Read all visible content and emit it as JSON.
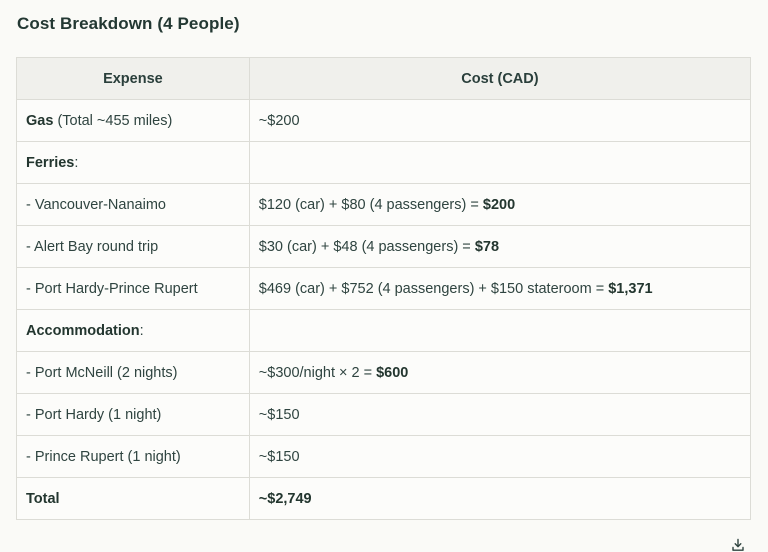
{
  "heading": "Cost Breakdown (4 People)",
  "table": {
    "headers": [
      "Expense",
      "Cost (CAD)"
    ],
    "rows": [
      {
        "expense_bold": "Gas",
        "expense_rest": " (Total ~455 miles)",
        "cost_plain": "~$200",
        "cost_bold": ""
      },
      {
        "expense_bold": "Ferries",
        "expense_rest": ":",
        "cost_plain": "",
        "cost_bold": ""
      },
      {
        "expense_bold": "",
        "expense_rest": "- Vancouver-Nanaimo",
        "cost_plain": "$120 (car) + $80 (4 passengers) = ",
        "cost_bold": "$200"
      },
      {
        "expense_bold": "",
        "expense_rest": "- Alert Bay round trip",
        "cost_plain": "$30 (car) + $48 (4 passengers) = ",
        "cost_bold": "$78"
      },
      {
        "expense_bold": "",
        "expense_rest": "- Port Hardy-Prince Rupert",
        "cost_plain": "$469 (car) + $752 (4 passengers) + $150 stateroom = ",
        "cost_bold": "$1,371"
      },
      {
        "expense_bold": "Accommodation",
        "expense_rest": ":",
        "cost_plain": "",
        "cost_bold": ""
      },
      {
        "expense_bold": "",
        "expense_rest": "- Port McNeill (2 nights)",
        "cost_plain": "~$300/night × 2 = ",
        "cost_bold": "$600"
      },
      {
        "expense_bold": "",
        "expense_rest": "- Port Hardy (1 night)",
        "cost_plain": "~$150",
        "cost_bold": ""
      },
      {
        "expense_bold": "",
        "expense_rest": "- Prince Rupert (1 night)",
        "cost_plain": "~$150",
        "cost_bold": ""
      },
      {
        "expense_bold": "Total",
        "expense_rest": "",
        "cost_plain": "",
        "cost_bold": "~$2,749"
      }
    ]
  },
  "icons": {
    "download": "download-icon"
  }
}
